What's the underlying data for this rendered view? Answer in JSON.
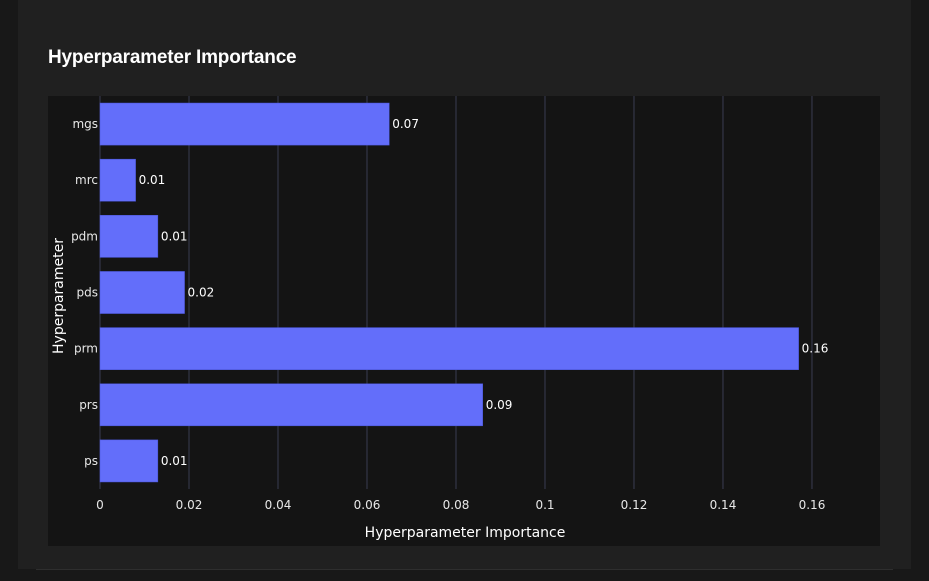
{
  "title": "Hyperparameter Importance",
  "colors": {
    "bar": "#636efa",
    "bar_stroke": "#4a55d8",
    "grid": "#3a3d52",
    "background": "#141414",
    "panel": "#202020"
  },
  "chart_data": {
    "type": "bar",
    "orientation": "horizontal",
    "title": "Hyperparameter Importance",
    "xlabel": "Hyperparameter Importance",
    "ylabel": "Hyperparameter",
    "categories": [
      "mgs",
      "mrc",
      "pdm",
      "pds",
      "prm",
      "prs",
      "ps"
    ],
    "values": [
      0.065,
      0.008,
      0.013,
      0.019,
      0.157,
      0.086,
      0.013
    ],
    "value_labels": [
      "0.07",
      "0.01",
      "0.01",
      "0.02",
      "0.16",
      "0.09",
      "0.01"
    ],
    "xlim": [
      0,
      0.1636
    ],
    "xticks": [
      0,
      0.02,
      0.04,
      0.06,
      0.08,
      0.1,
      0.12,
      0.14,
      0.16
    ],
    "xtick_labels": [
      "0",
      "0.02",
      "0.04",
      "0.06",
      "0.08",
      "0.1",
      "0.12",
      "0.14",
      "0.16"
    ],
    "grid": true
  }
}
